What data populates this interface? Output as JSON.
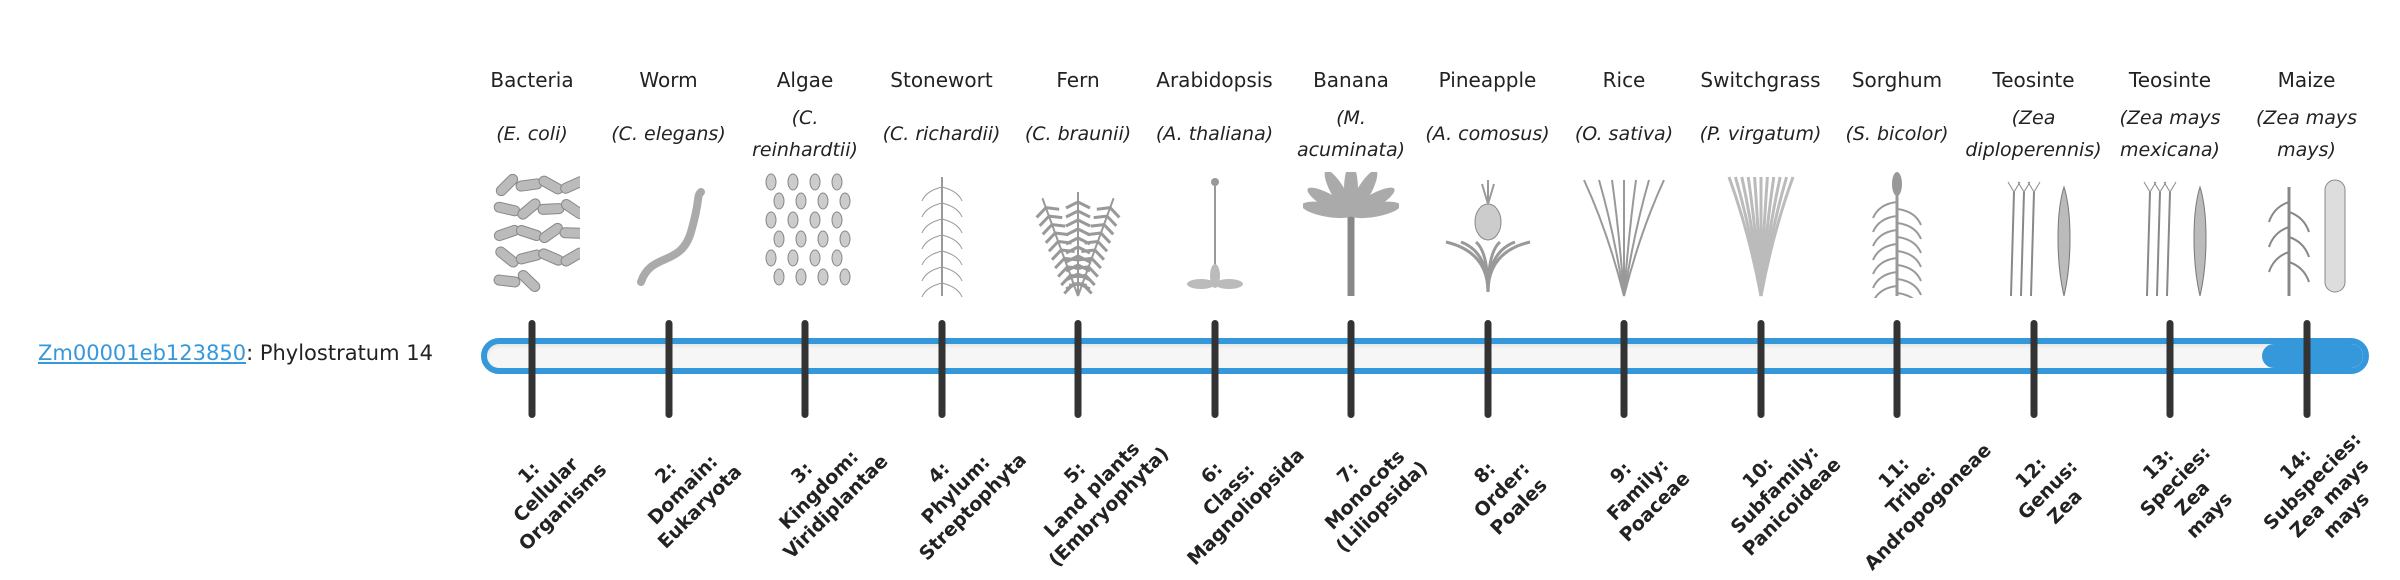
{
  "gene": {
    "id": "Zm00001eb123850",
    "suffix": ": Phylostratum 14"
  },
  "progress": {
    "phylostratum": 14,
    "total": 14,
    "color": "#3498db"
  },
  "organisms": [
    {
      "common": "Bacteria",
      "species": "E. coli",
      "icon": "rods-icon"
    },
    {
      "common": "Worm",
      "species": "C. elegans",
      "icon": "worm-icon"
    },
    {
      "common": "Algae",
      "species": "C. reinhardtii",
      "icon": "cells-icon"
    },
    {
      "common": "Stonewort",
      "species": "C. richardii",
      "icon": "stonewort-icon"
    },
    {
      "common": "Fern",
      "species": "C. braunii",
      "icon": "fern-icon"
    },
    {
      "common": "Arabidopsis",
      "species": "A. thaliana",
      "icon": "rosette-icon"
    },
    {
      "common": "Banana",
      "species": "M. acuminata",
      "icon": "palm-icon"
    },
    {
      "common": "Pineapple",
      "species": "A. comosus",
      "icon": "pineapple-icon"
    },
    {
      "common": "Rice",
      "species": "O. sativa",
      "icon": "grass-icon"
    },
    {
      "common": "Switchgrass",
      "species": "P. virgatum",
      "icon": "bushy-grass-icon"
    },
    {
      "common": "Sorghum",
      "species": "S. bicolor",
      "icon": "stalk-icon"
    },
    {
      "common": "Teosinte",
      "species": "Zea diploperennis",
      "icon": "teosinte-icon"
    },
    {
      "common": "Teosinte",
      "species": "Zea mays mexicana",
      "icon": "teosinte-icon"
    },
    {
      "common": "Maize",
      "species": "Zea mays mays",
      "icon": "maize-icon"
    }
  ],
  "ranks": [
    "1:\nCellular\nOrganisms",
    "2:\nDomain:\nEukaryota",
    "3:\nKingdom:\nViridiplantae",
    "4:\nPhylum:\nStreptophyta",
    "5:\nLand plants\n(Embryophyta)",
    "6:\nClass:\nMagnoliopsida",
    "7:\nMonocots\n(Liliopsida)",
    "8:\nOrder:\nPoales",
    "9:\nFamily:\nPoaceae",
    "10:\nSubfamily:\nPanicoideae",
    "11:\nTribe:\nAndropogoneae",
    "12:\nGenus:\nZea",
    "13:\nSpecies:\nZea\nmays",
    "14:\nSubspecies:\nZea mays\nmays"
  ]
}
